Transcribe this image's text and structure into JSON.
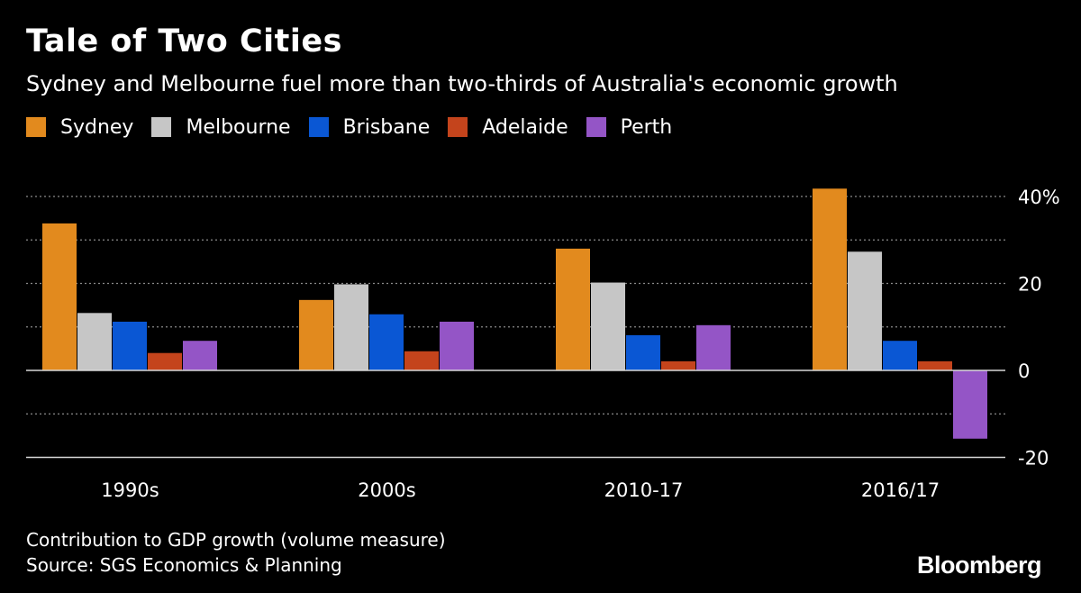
{
  "header": {
    "title": "Tale of Two Cities",
    "subtitle": "Sydney and Melbourne fuel more than two-thirds of Australia's economic growth"
  },
  "footer": {
    "note": "Contribution to GDP growth (volume measure)",
    "source": "Source: SGS Economics & Planning",
    "brand": "Bloomberg"
  },
  "chart_data": {
    "type": "bar",
    "title": "Tale of Two Cities",
    "subtitle": "Sydney and Melbourne fuel more than two-thirds of Australia's economic growth",
    "categories": [
      "1990s",
      "2000s",
      "2010-17",
      "2016/17"
    ],
    "series": [
      {
        "name": "Sydney",
        "color": "#e28a1e",
        "values": [
          33.8,
          16.2,
          28.0,
          41.8
        ]
      },
      {
        "name": "Melbourne",
        "color": "#c6c6c6",
        "values": [
          13.2,
          19.8,
          20.2,
          27.3
        ]
      },
      {
        "name": "Brisbane",
        "color": "#0a57d4",
        "values": [
          11.2,
          12.9,
          8.1,
          6.8
        ]
      },
      {
        "name": "Adelaide",
        "color": "#c4441c",
        "values": [
          4.0,
          4.4,
          2.1,
          2.1
        ]
      },
      {
        "name": "Perth",
        "color": "#9455c6",
        "values": [
          6.8,
          11.2,
          10.4,
          -15.7
        ]
      }
    ],
    "ylim": [
      -20,
      42
    ],
    "ytick_values": [
      -20,
      0,
      20,
      40
    ],
    "ytick_labels": [
      "-20",
      "0",
      "20",
      "40%"
    ],
    "xlabel": "",
    "ylabel": "",
    "grid": true,
    "legend_position": "top-left"
  }
}
